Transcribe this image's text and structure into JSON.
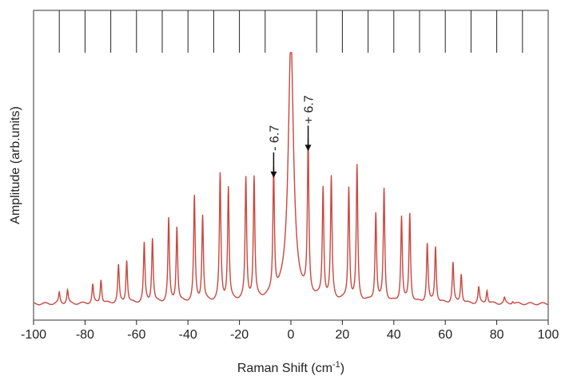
{
  "chart_data": {
    "type": "line",
    "xlabel": "Raman Shift (cm",
    "xlabel_sup": "-1",
    "xlabel_suffix": ")",
    "ylabel": "Amplitude (arb.units)",
    "xlim": [
      -100,
      100
    ],
    "ylim": [
      0,
      1.0
    ],
    "xticks": [
      "-100",
      "-80",
      "-60",
      "-40",
      "-20",
      "0",
      "20",
      "40",
      "60",
      "80",
      "100"
    ],
    "xtick_values": [
      -100,
      -80,
      -60,
      -40,
      -20,
      0,
      20,
      40,
      60,
      80,
      100
    ],
    "top_markers": [
      -90,
      -80,
      -70,
      -60,
      -50,
      -40,
      -30,
      -20,
      -10,
      10,
      20,
      30,
      40,
      50,
      60,
      70,
      80,
      90
    ],
    "grid": false,
    "line_color": "#c9473f",
    "baseline": 0.06,
    "central_peak": {
      "x": 0,
      "height": 1.0,
      "width": 1.2
    },
    "peaks": [
      {
        "x": -90.0,
        "y": 0.1
      },
      {
        "x": -86.8,
        "y": 0.11
      },
      {
        "x": -77.0,
        "y": 0.13
      },
      {
        "x": -73.8,
        "y": 0.15
      },
      {
        "x": -67.0,
        "y": 0.2
      },
      {
        "x": -63.8,
        "y": 0.22
      },
      {
        "x": -57.0,
        "y": 0.28
      },
      {
        "x": -53.8,
        "y": 0.3
      },
      {
        "x": -47.5,
        "y": 0.37
      },
      {
        "x": -44.3,
        "y": 0.34
      },
      {
        "x": -37.5,
        "y": 0.45
      },
      {
        "x": -34.3,
        "y": 0.38
      },
      {
        "x": -27.5,
        "y": 0.53
      },
      {
        "x": -24.3,
        "y": 0.48
      },
      {
        "x": -17.5,
        "y": 0.51
      },
      {
        "x": -14.3,
        "y": 0.51
      },
      {
        "x": -6.7,
        "y": 0.52
      },
      {
        "x": 6.7,
        "y": 0.62
      },
      {
        "x": 12.5,
        "y": 0.47
      },
      {
        "x": 15.7,
        "y": 0.51
      },
      {
        "x": 22.5,
        "y": 0.48
      },
      {
        "x": 25.7,
        "y": 0.56
      },
      {
        "x": 33.0,
        "y": 0.39
      },
      {
        "x": 36.2,
        "y": 0.48
      },
      {
        "x": 43.0,
        "y": 0.38
      },
      {
        "x": 46.2,
        "y": 0.39
      },
      {
        "x": 53.0,
        "y": 0.28
      },
      {
        "x": 56.2,
        "y": 0.27
      },
      {
        "x": 63.0,
        "y": 0.21
      },
      {
        "x": 66.2,
        "y": 0.17
      },
      {
        "x": 73.0,
        "y": 0.12
      },
      {
        "x": 76.2,
        "y": 0.11
      },
      {
        "x": 83.0,
        "y": 0.08
      },
      {
        "x": 86.2,
        "y": 0.07
      }
    ],
    "annotations": [
      {
        "text": "- 6.7",
        "x": -6.7,
        "side": "minus"
      },
      {
        "text": "+ 6.7",
        "x": 6.7,
        "side": "plus"
      }
    ]
  }
}
